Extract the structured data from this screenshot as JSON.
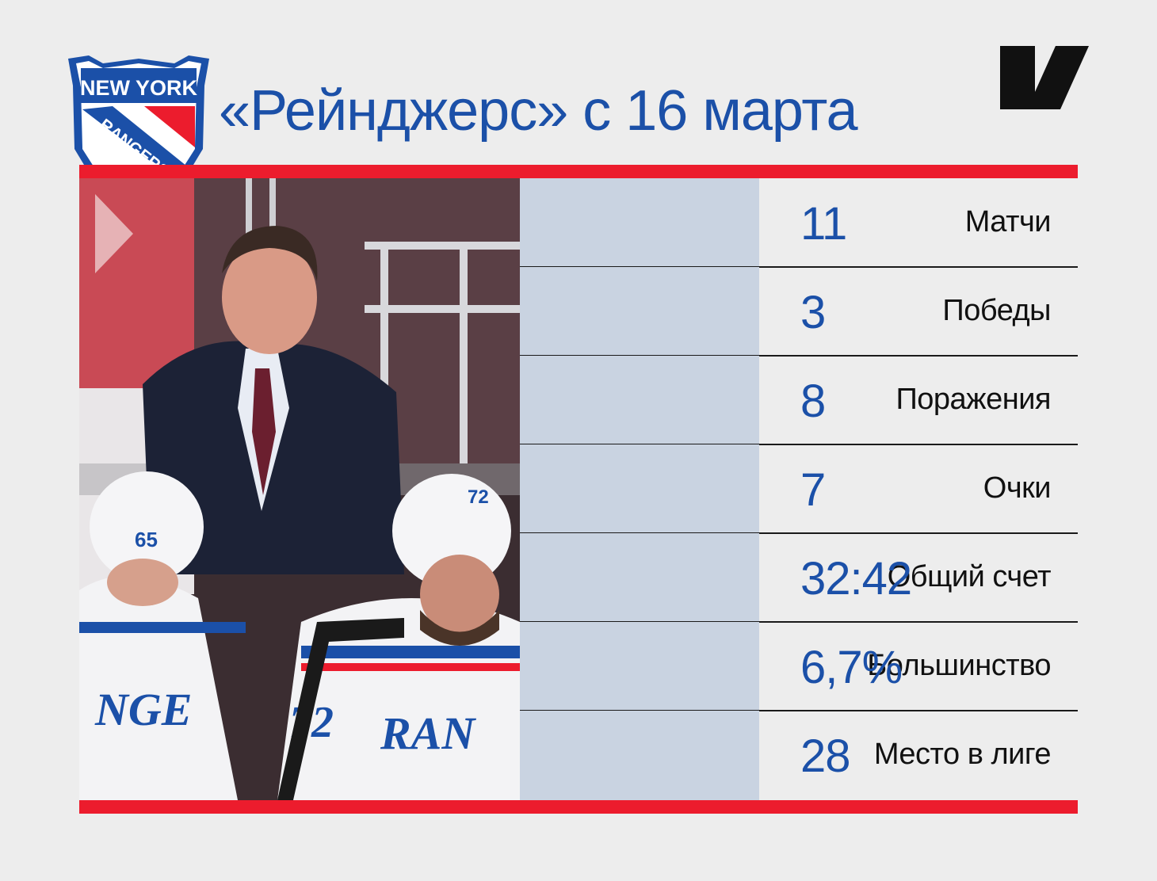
{
  "title": "«Рейнджерс» с 16 марта",
  "logo": {
    "text_line1": "NEW YORK",
    "text_line2": "RANGERS",
    "icon": "ny-rangers-shield-logo"
  },
  "brand_icon": "publisher-logo-icon",
  "colors": {
    "accent_red": "#ec1c2d",
    "accent_blue": "#1b50a8",
    "label_bg": "#c9d3e1",
    "background": "#ededed"
  },
  "photo": {
    "description": "coach-and-players-on-bench-photo",
    "jersey_numbers": [
      "65",
      "72"
    ]
  },
  "stats": [
    {
      "label": "Матчи",
      "value": "11"
    },
    {
      "label": "Победы",
      "value": "3"
    },
    {
      "label": "Поражения",
      "value": "8"
    },
    {
      "label": "Очки",
      "value": "7"
    },
    {
      "label": "Общий счет",
      "value": "32:42"
    },
    {
      "label": "Большинство",
      "value": "6,7%"
    },
    {
      "label": "Место в лиге",
      "value": "28"
    }
  ]
}
